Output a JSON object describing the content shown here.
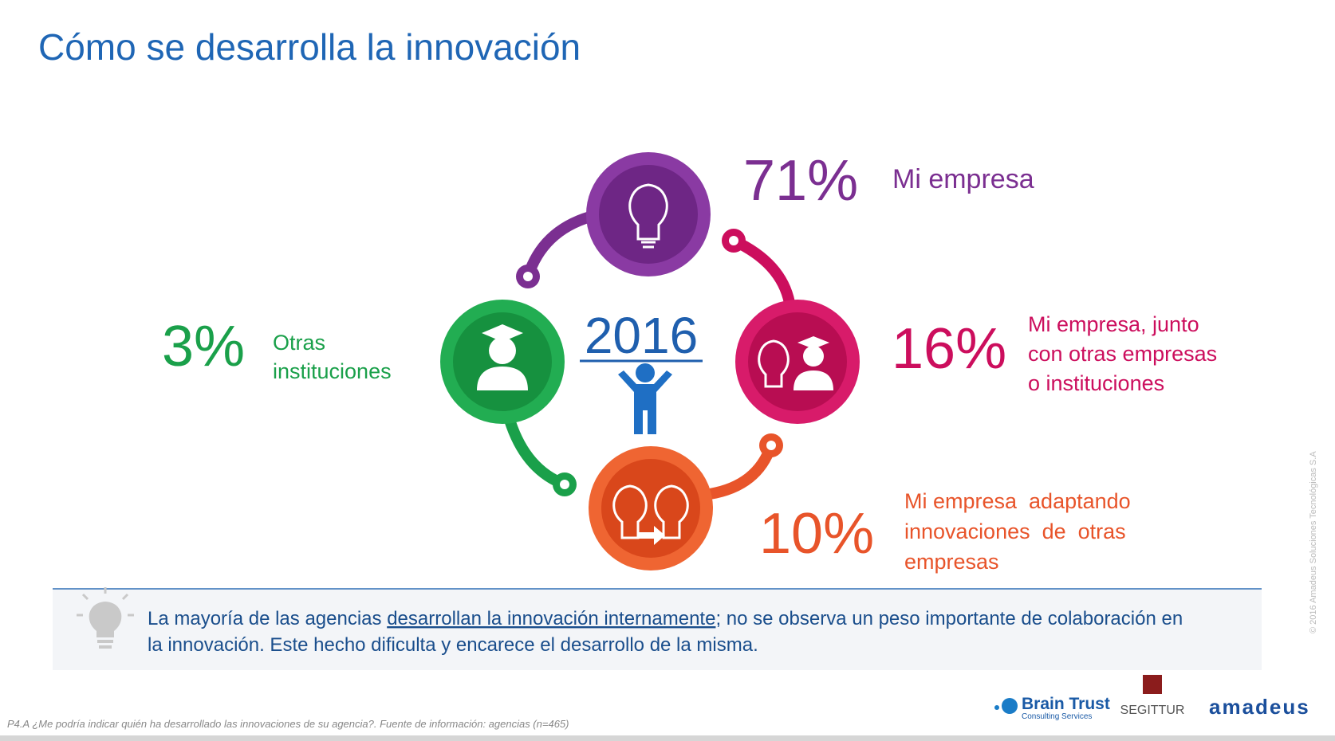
{
  "header": {
    "title": "Cómo se desarrolla la innovación"
  },
  "center": {
    "year": "2016"
  },
  "items": [
    {
      "percent": "71%",
      "label": [
        "Mi empresa"
      ],
      "color": "#7b2f91"
    },
    {
      "percent": "16%",
      "label": [
        "Mi empresa, junto",
        "con otras empresas",
        "o instituciones"
      ],
      "color": "#cc0e5d"
    },
    {
      "percent": "10%",
      "label": [
        "Mi empresa  adaptando",
        "innovaciones  de  otras",
        "empresas"
      ],
      "color": "#e8542a"
    },
    {
      "percent": "3%",
      "label": [
        "Otras",
        "instituciones"
      ],
      "color": "#1aa04a"
    }
  ],
  "note": {
    "parts": [
      "La mayoría de las agencias ",
      "desarrollan la innovación internamente",
      "; no se observa un peso importante de colaboración en",
      "la innovación. Este hecho dificulta y encarece el desarrollo de la misma."
    ]
  },
  "footer": {
    "source": "P4.A ¿Me podría indicar quién ha desarrollado las innovaciones de su agencia?. Fuente de información: agencias (n=465)",
    "copyright": "© 2016 Amadeus Soluciones Tecnológicas S.A",
    "logos": [
      "Brain Trust",
      "Consulting Services",
      "SEGITTUR",
      "amadeus"
    ]
  }
}
